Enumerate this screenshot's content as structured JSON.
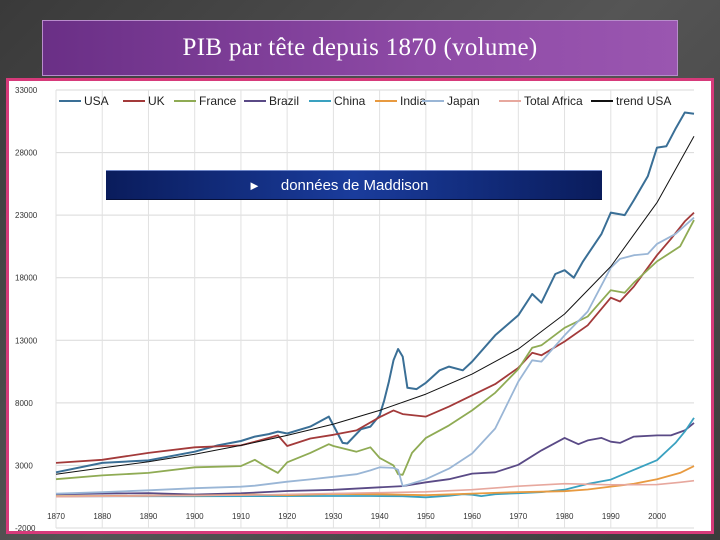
{
  "slide": {
    "title": "PIB par tête depuis 1870 (volume)",
    "banner_arrow": "►",
    "banner_text": "données de  Maddison"
  },
  "chart_data": {
    "type": "line",
    "title": "",
    "xlabel": "",
    "ylabel": "",
    "xlim": [
      1870,
      2008
    ],
    "ylim": [
      -2000,
      33000
    ],
    "grid": true,
    "legend_position": "top",
    "x_ticks": [
      "1870",
      "1880",
      "1890",
      "1900",
      "1910",
      "1920",
      "1930",
      "1940",
      "1950",
      "1960",
      "1970",
      "1980",
      "1990",
      "2000"
    ],
    "y_ticks": [
      "33000",
      "28000",
      "23000",
      "18000",
      "13000",
      "8000",
      "3000",
      "-2000"
    ],
    "series": [
      {
        "name": "USA",
        "color": "#3a6f96",
        "width": 2,
        "points": [
          [
            1870,
            2450
          ],
          [
            1880,
            3200
          ],
          [
            1890,
            3400
          ],
          [
            1900,
            4100
          ],
          [
            1905,
            4600
          ],
          [
            1910,
            4950
          ],
          [
            1913,
            5300
          ],
          [
            1916,
            5500
          ],
          [
            1918,
            5700
          ],
          [
            1920,
            5550
          ],
          [
            1925,
            6100
          ],
          [
            1929,
            6900
          ],
          [
            1930,
            6200
          ],
          [
            1932,
            4800
          ],
          [
            1933,
            4750
          ],
          [
            1936,
            5900
          ],
          [
            1938,
            6100
          ],
          [
            1940,
            7000
          ],
          [
            1941,
            8200
          ],
          [
            1942,
            9700
          ],
          [
            1943,
            11400
          ],
          [
            1944,
            12300
          ],
          [
            1945,
            11700
          ],
          [
            1946,
            9200
          ],
          [
            1948,
            9100
          ],
          [
            1950,
            9600
          ],
          [
            1953,
            10600
          ],
          [
            1955,
            10900
          ],
          [
            1958,
            10600
          ],
          [
            1960,
            11300
          ],
          [
            1965,
            13400
          ],
          [
            1970,
            15000
          ],
          [
            1973,
            16700
          ],
          [
            1975,
            16000
          ],
          [
            1978,
            18300
          ],
          [
            1980,
            18600
          ],
          [
            1982,
            18000
          ],
          [
            1984,
            19300
          ],
          [
            1988,
            21500
          ],
          [
            1990,
            23200
          ],
          [
            1993,
            23000
          ],
          [
            1995,
            24200
          ],
          [
            1998,
            26100
          ],
          [
            2000,
            28400
          ],
          [
            2002,
            28500
          ],
          [
            2004,
            29900
          ],
          [
            2006,
            31200
          ],
          [
            2008,
            31100
          ]
        ]
      },
      {
        "name": "UK",
        "color": "#a33a3a",
        "width": 1.8,
        "points": [
          [
            1870,
            3200
          ],
          [
            1880,
            3450
          ],
          [
            1890,
            4000
          ],
          [
            1900,
            4450
          ],
          [
            1910,
            4600
          ],
          [
            1913,
            4900
          ],
          [
            1918,
            5400
          ],
          [
            1920,
            4550
          ],
          [
            1925,
            5150
          ],
          [
            1930,
            5450
          ],
          [
            1935,
            5800
          ],
          [
            1940,
            6850
          ],
          [
            1943,
            7400
          ],
          [
            1945,
            7100
          ],
          [
            1950,
            6900
          ],
          [
            1955,
            7700
          ],
          [
            1960,
            8600
          ],
          [
            1965,
            9500
          ],
          [
            1970,
            10800
          ],
          [
            1973,
            12000
          ],
          [
            1975,
            11800
          ],
          [
            1980,
            12900
          ],
          [
            1985,
            14200
          ],
          [
            1990,
            16400
          ],
          [
            1992,
            16100
          ],
          [
            1995,
            17300
          ],
          [
            2000,
            19800
          ],
          [
            2003,
            21100
          ],
          [
            2006,
            22500
          ],
          [
            2008,
            23200
          ]
        ]
      },
      {
        "name": "France",
        "color": "#8fab54",
        "width": 1.8,
        "points": [
          [
            1870,
            1900
          ],
          [
            1880,
            2200
          ],
          [
            1890,
            2400
          ],
          [
            1900,
            2850
          ],
          [
            1910,
            2950
          ],
          [
            1913,
            3450
          ],
          [
            1915,
            3000
          ],
          [
            1918,
            2400
          ],
          [
            1920,
            3250
          ],
          [
            1925,
            4000
          ],
          [
            1929,
            4700
          ],
          [
            1930,
            4550
          ],
          [
            1935,
            4100
          ],
          [
            1938,
            4450
          ],
          [
            1940,
            3600
          ],
          [
            1943,
            3000
          ],
          [
            1944,
            2300
          ],
          [
            1945,
            2250
          ],
          [
            1947,
            4000
          ],
          [
            1950,
            5200
          ],
          [
            1955,
            6200
          ],
          [
            1960,
            7400
          ],
          [
            1965,
            8800
          ],
          [
            1970,
            10700
          ],
          [
            1973,
            12400
          ],
          [
            1975,
            12600
          ],
          [
            1980,
            14000
          ],
          [
            1985,
            14900
          ],
          [
            1990,
            17000
          ],
          [
            1993,
            16800
          ],
          [
            1995,
            17600
          ],
          [
            2000,
            19300
          ],
          [
            2005,
            20500
          ],
          [
            2008,
            22600
          ]
        ]
      },
      {
        "name": "Brazil",
        "color": "#5a4a86",
        "width": 1.8,
        "points": [
          [
            1870,
            700
          ],
          [
            1880,
            750
          ],
          [
            1890,
            780
          ],
          [
            1900,
            680
          ],
          [
            1910,
            770
          ],
          [
            1920,
            960
          ],
          [
            1930,
            1050
          ],
          [
            1940,
            1250
          ],
          [
            1945,
            1350
          ],
          [
            1950,
            1650
          ],
          [
            1955,
            1900
          ],
          [
            1960,
            2350
          ],
          [
            1965,
            2450
          ],
          [
            1970,
            3050
          ],
          [
            1975,
            4200
          ],
          [
            1980,
            5200
          ],
          [
            1983,
            4700
          ],
          [
            1985,
            5000
          ],
          [
            1988,
            5200
          ],
          [
            1990,
            4900
          ],
          [
            1992,
            4800
          ],
          [
            1995,
            5300
          ],
          [
            2000,
            5400
          ],
          [
            2003,
            5400
          ],
          [
            2006,
            5800
          ],
          [
            2008,
            6400
          ]
        ]
      },
      {
        "name": "China",
        "color": "#3aa1c0",
        "width": 1.8,
        "points": [
          [
            1870,
            530
          ],
          [
            1900,
            545
          ],
          [
            1913,
            550
          ],
          [
            1929,
            560
          ],
          [
            1938,
            560
          ],
          [
            1945,
            540
          ],
          [
            1950,
            450
          ],
          [
            1955,
            580
          ],
          [
            1958,
            700
          ],
          [
            1960,
            660
          ],
          [
            1962,
            550
          ],
          [
            1965,
            700
          ],
          [
            1970,
            780
          ],
          [
            1975,
            870
          ],
          [
            1978,
            980
          ],
          [
            1980,
            1060
          ],
          [
            1985,
            1520
          ],
          [
            1990,
            1870
          ],
          [
            1995,
            2650
          ],
          [
            2000,
            3420
          ],
          [
            2004,
            4800
          ],
          [
            2006,
            5700
          ],
          [
            2008,
            6800
          ]
        ]
      },
      {
        "name": "India",
        "color": "#e89a40",
        "width": 1.8,
        "points": [
          [
            1870,
            530
          ],
          [
            1880,
            560
          ],
          [
            1890,
            580
          ],
          [
            1900,
            600
          ],
          [
            1913,
            670
          ],
          [
            1920,
            630
          ],
          [
            1930,
            730
          ],
          [
            1940,
            690
          ],
          [
            1950,
            620
          ],
          [
            1960,
            750
          ],
          [
            1970,
            870
          ],
          [
            1975,
            900
          ],
          [
            1980,
            940
          ],
          [
            1985,
            1080
          ],
          [
            1990,
            1310
          ],
          [
            1995,
            1530
          ],
          [
            2000,
            1890
          ],
          [
            2005,
            2400
          ],
          [
            2008,
            2950
          ]
        ]
      },
      {
        "name": "Japan",
        "color": "#9ab6d6",
        "width": 1.8,
        "points": [
          [
            1870,
            740
          ],
          [
            1880,
            860
          ],
          [
            1890,
            1010
          ],
          [
            1900,
            1180
          ],
          [
            1910,
            1300
          ],
          [
            1913,
            1380
          ],
          [
            1920,
            1700
          ],
          [
            1925,
            1880
          ],
          [
            1929,
            2050
          ],
          [
            1935,
            2300
          ],
          [
            1938,
            2600
          ],
          [
            1940,
            2850
          ],
          [
            1943,
            2800
          ],
          [
            1944,
            2650
          ],
          [
            1945,
            1350
          ],
          [
            1946,
            1450
          ],
          [
            1950,
            1900
          ],
          [
            1955,
            2750
          ],
          [
            1960,
            3950
          ],
          [
            1965,
            5950
          ],
          [
            1970,
            9700
          ],
          [
            1973,
            11400
          ],
          [
            1975,
            11300
          ],
          [
            1980,
            13400
          ],
          [
            1985,
            15300
          ],
          [
            1990,
            18800
          ],
          [
            1992,
            19500
          ],
          [
            1995,
            19800
          ],
          [
            1998,
            19900
          ],
          [
            2000,
            20700
          ],
          [
            2004,
            21500
          ],
          [
            2008,
            22800
          ]
        ]
      },
      {
        "name": "Total Africa",
        "color": "#e7a89e",
        "width": 1.6,
        "points": [
          [
            1870,
            500
          ],
          [
            1900,
            600
          ],
          [
            1913,
            640
          ],
          [
            1929,
            760
          ],
          [
            1940,
            820
          ],
          [
            1950,
            890
          ],
          [
            1960,
            1060
          ],
          [
            1970,
            1340
          ],
          [
            1980,
            1540
          ],
          [
            1990,
            1450
          ],
          [
            2000,
            1470
          ],
          [
            2005,
            1650
          ],
          [
            2008,
            1780
          ]
        ]
      },
      {
        "name": "trend USA",
        "color": "#111111",
        "width": 1,
        "points": [
          [
            1870,
            2300
          ],
          [
            1880,
            2800
          ],
          [
            1890,
            3300
          ],
          [
            1900,
            3900
          ],
          [
            1910,
            4600
          ],
          [
            1920,
            5400
          ],
          [
            1930,
            6300
          ],
          [
            1940,
            7400
          ],
          [
            1950,
            8700
          ],
          [
            1960,
            10300
          ],
          [
            1970,
            12300
          ],
          [
            1980,
            15100
          ],
          [
            1990,
            18900
          ],
          [
            2000,
            24000
          ],
          [
            2008,
            29300
          ]
        ]
      }
    ]
  }
}
